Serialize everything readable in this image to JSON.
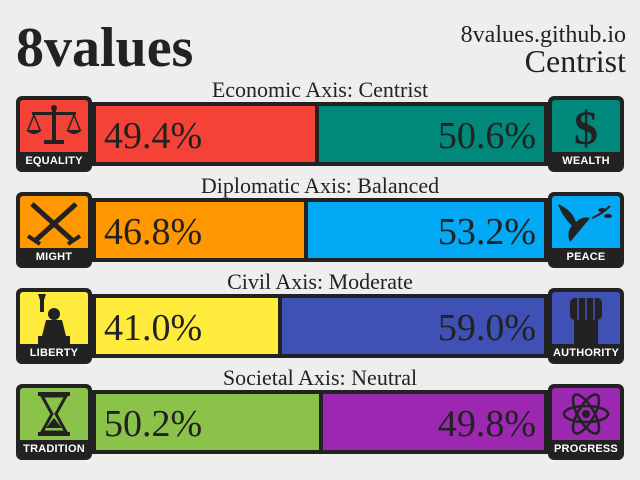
{
  "header": {
    "title": "8values",
    "site": "8values.github.io",
    "ideology": "Centrist"
  },
  "axes": [
    {
      "label": "Economic Axis: Centrist",
      "left": {
        "name": "EQUALITY",
        "value": 49.4,
        "text": "49.4%",
        "color": "#f44336",
        "icon": "scales-icon"
      },
      "right": {
        "name": "WEALTH",
        "value": 50.6,
        "text": "50.6%",
        "color": "#00897b",
        "icon": "dollar-icon"
      }
    },
    {
      "label": "Diplomatic Axis: Balanced",
      "left": {
        "name": "MIGHT",
        "value": 46.8,
        "text": "46.8%",
        "color": "#ff9800",
        "icon": "crossed-swords-icon"
      },
      "right": {
        "name": "PEACE",
        "value": 53.2,
        "text": "53.2%",
        "color": "#03a9f4",
        "icon": "dove-icon"
      }
    },
    {
      "label": "Civil Axis: Moderate",
      "left": {
        "name": "LIBERTY",
        "value": 41.0,
        "text": "41.0%",
        "color": "#ffeb3b",
        "icon": "statue-of-liberty-icon"
      },
      "right": {
        "name": "AUTHORITY",
        "value": 59.0,
        "text": "59.0%",
        "color": "#3f51b5",
        "icon": "fist-icon"
      }
    },
    {
      "label": "Societal Axis: Neutral",
      "left": {
        "name": "TRADITION",
        "value": 50.2,
        "text": "50.2%",
        "color": "#8bc34a",
        "icon": "hourglass-icon"
      },
      "right": {
        "name": "PROGRESS",
        "value": 49.8,
        "text": "49.8%",
        "color": "#9c27b0",
        "icon": "atom-icon"
      }
    }
  ]
}
